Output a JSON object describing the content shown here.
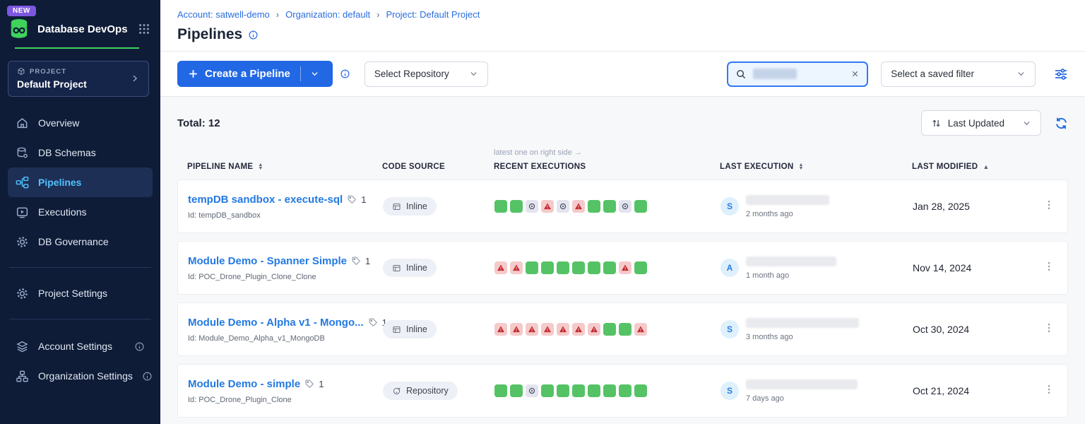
{
  "colors": {
    "sidebar_bg": "#0e1c38",
    "brand_green": "#3fd35c",
    "accent_blue": "#2268e5",
    "active_nav_blue": "#4fc3ff",
    "success_green": "#55c365",
    "error_red_bg": "#f5caca",
    "error_red": "#c5282f",
    "skipped_gray_bg": "#e3e4ee",
    "new_badge_purple": "#7e57e0"
  },
  "sidebar": {
    "new_badge": "NEW",
    "app_title": "Database DevOps",
    "logo_icon": "database-logo-icon",
    "apps_grid_icon": "apps-grid-icon",
    "project_selector": {
      "label": "PROJECT",
      "value": "Default Project",
      "icon": "cube-icon"
    },
    "nav_items": [
      {
        "label": "Overview",
        "icon": "home-icon",
        "active": false
      },
      {
        "label": "DB Schemas",
        "icon": "db-schemas-icon",
        "active": false
      },
      {
        "label": "Pipelines",
        "icon": "pipelines-icon",
        "active": true
      },
      {
        "label": "Executions",
        "icon": "executions-icon",
        "active": false
      },
      {
        "label": "DB Governance",
        "icon": "governance-icon",
        "active": false
      }
    ],
    "secondary_items": [
      {
        "label": "Project Settings",
        "icon": "gear-icon",
        "info": false
      }
    ],
    "tertiary_items": [
      {
        "label": "Account Settings",
        "icon": "account-layers-icon",
        "info": true
      },
      {
        "label": "Organization Settings",
        "icon": "org-icon",
        "info": true
      }
    ]
  },
  "breadcrumb": {
    "items": [
      "Account: satwell-demo",
      "Organization: default",
      "Project: Default Project"
    ],
    "separator": "›"
  },
  "page": {
    "title": "Pipelines"
  },
  "toolbar": {
    "create_button": "Create a Pipeline",
    "select_repository": "Select Repository",
    "search": {
      "redacted": true
    },
    "saved_filter": "Select a saved filter"
  },
  "list": {
    "total": "Total: 12",
    "sort": "Last Updated",
    "columns": [
      {
        "label": "PIPELINE NAME",
        "sort": "both"
      },
      {
        "label": "CODE SOURCE",
        "sort": null
      },
      {
        "label": "RECENT EXECUTIONS",
        "sort": null,
        "note": "latest one on right side →"
      },
      {
        "label": "LAST EXECUTION",
        "sort": "both"
      },
      {
        "label": "LAST MODIFIED",
        "sort": "asc"
      }
    ],
    "rows": [
      {
        "name": "tempDB sandbox - execute-sql",
        "tag_count": "1",
        "id": "Id: tempDB_sandbox",
        "source": "Inline",
        "source_icon": "inline-source-icon",
        "executions": [
          "success",
          "success",
          "skipped",
          "error",
          "skipped",
          "error",
          "success",
          "success",
          "skipped",
          "success"
        ],
        "executor_initial": "S",
        "executed": "2 months ago",
        "modified": "Jan 28, 2025"
      },
      {
        "name": "Module Demo - Spanner Simple",
        "tag_count": "1",
        "id": "Id: POC_Drone_Plugin_Clone_Clone",
        "source": "Inline",
        "source_icon": "inline-source-icon",
        "executions": [
          "error",
          "error",
          "success",
          "success",
          "success",
          "success",
          "success",
          "success",
          "error",
          "success"
        ],
        "executor_initial": "A",
        "executed": "1 month ago",
        "modified": "Nov 14, 2024"
      },
      {
        "name": "Module Demo - Alpha v1 - Mongo...",
        "tag_count": "1",
        "id": "Id: Module_Demo_Alpha_v1_MongoDB",
        "source": "Inline",
        "source_icon": "inline-source-icon",
        "executions": [
          "error",
          "error",
          "error",
          "error",
          "error",
          "error",
          "error",
          "success",
          "success",
          "error"
        ],
        "executor_initial": "S",
        "executed": "3 months ago",
        "modified": "Oct 30, 2024"
      },
      {
        "name": "Module Demo - simple",
        "tag_count": "1",
        "id": "Id: POC_Drone_Plugin_Clone",
        "source": "Repository",
        "source_icon": "repository-source-icon",
        "executions": [
          "success",
          "success",
          "skipped",
          "success",
          "success",
          "success",
          "success",
          "success",
          "success",
          "success"
        ],
        "executor_initial": "S",
        "executed": "7 days ago",
        "modified": "Oct 21, 2024"
      }
    ]
  }
}
